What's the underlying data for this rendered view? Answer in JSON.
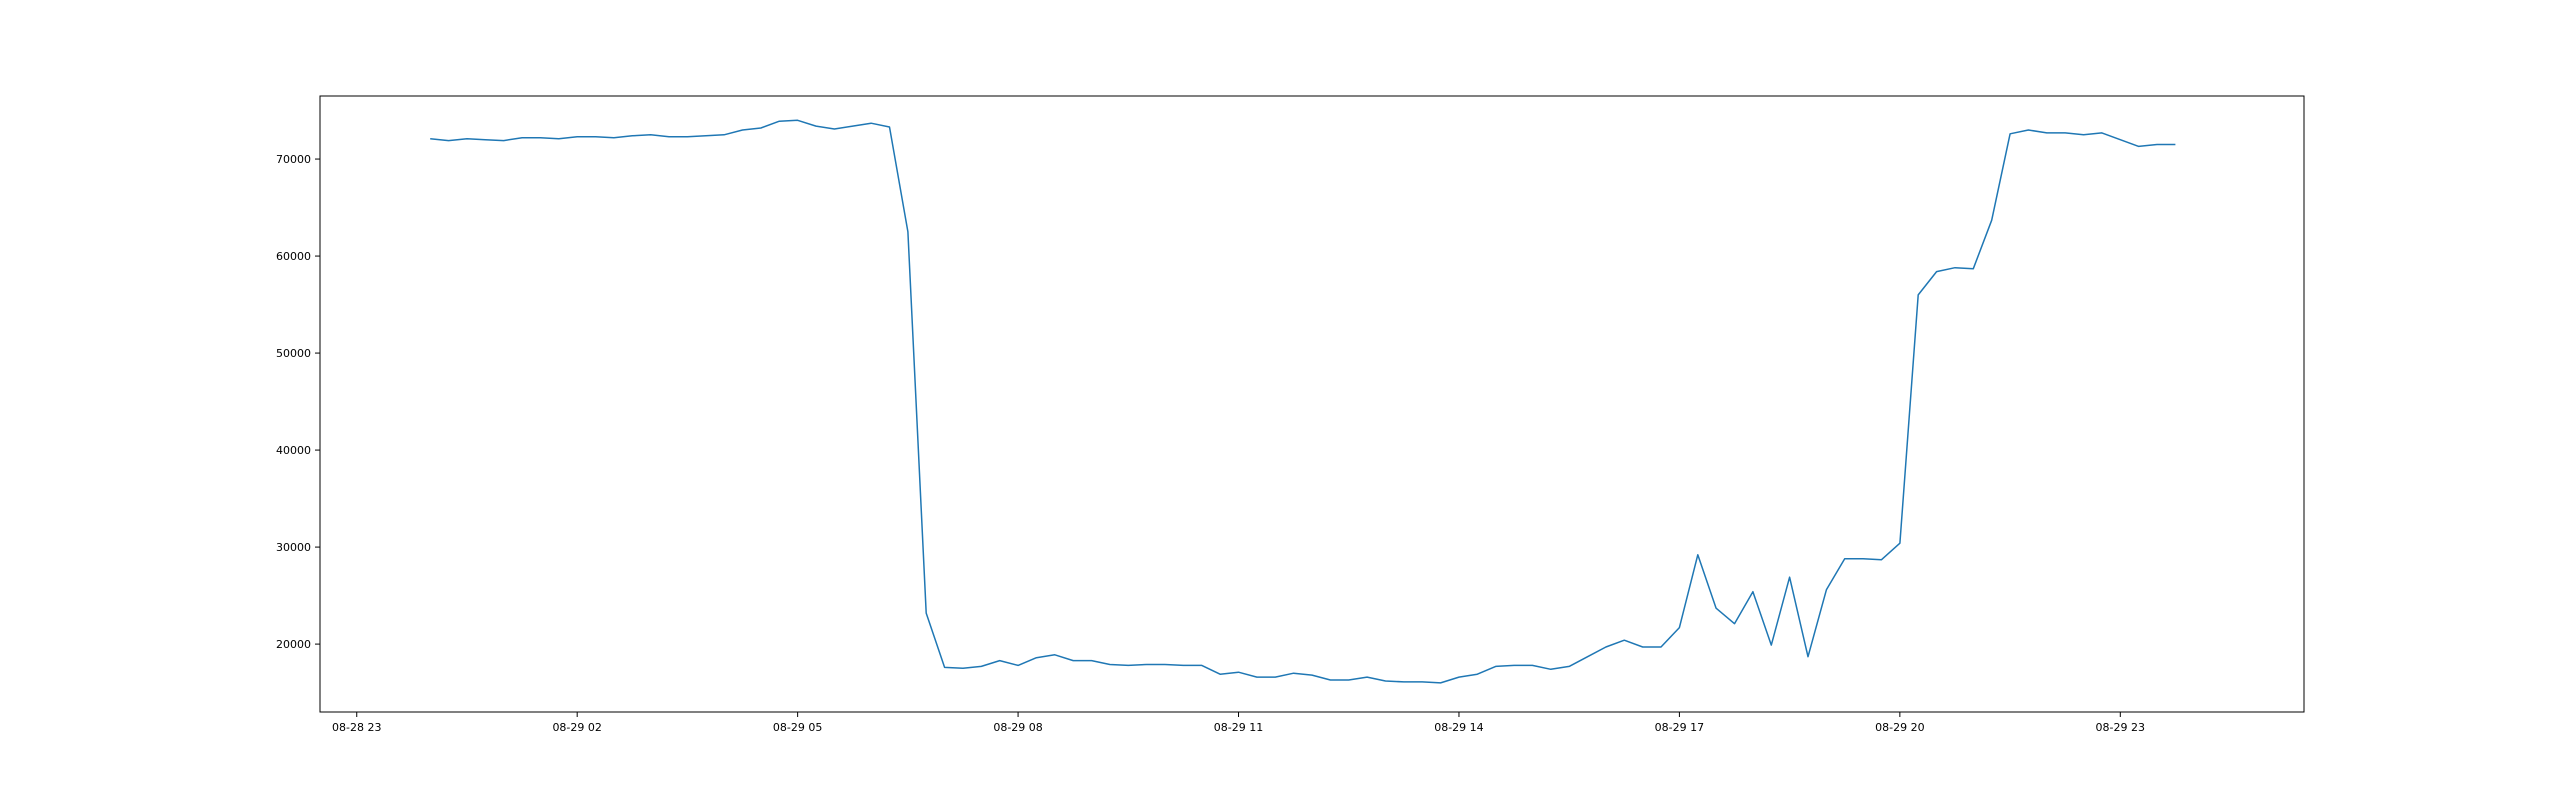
{
  "chart_data": {
    "type": "line",
    "title": "",
    "xlabel": "",
    "ylabel": "",
    "x_axis": {
      "kind": "datetime",
      "range": [
        "2018-08-28 22:30",
        "2018-08-30 01:30"
      ],
      "ticks": [
        {
          "t": "2018-08-28 23:00",
          "label": "08-28 23"
        },
        {
          "t": "2018-08-29 02:00",
          "label": "08-29 02"
        },
        {
          "t": "2018-08-29 05:00",
          "label": "08-29 05"
        },
        {
          "t": "2018-08-29 08:00",
          "label": "08-29 08"
        },
        {
          "t": "2018-08-29 11:00",
          "label": "08-29 11"
        },
        {
          "t": "2018-08-29 14:00",
          "label": "08-29 14"
        },
        {
          "t": "2018-08-29 17:00",
          "label": "08-29 17"
        },
        {
          "t": "2018-08-29 20:00",
          "label": "08-29 20"
        },
        {
          "t": "2018-08-29 23:00",
          "label": "08-29 23"
        }
      ]
    },
    "y_axis": {
      "range": [
        13000,
        76500
      ],
      "ticks": [
        20000,
        30000,
        40000,
        50000,
        60000,
        70000
      ]
    },
    "grid": false,
    "legend": "none",
    "series": [
      {
        "color": "#1f77b4",
        "x": [
          "2018-08-29 00:00",
          "2018-08-29 00:15",
          "2018-08-29 00:30",
          "2018-08-29 00:45",
          "2018-08-29 01:00",
          "2018-08-29 01:15",
          "2018-08-29 01:30",
          "2018-08-29 01:45",
          "2018-08-29 02:00",
          "2018-08-29 02:15",
          "2018-08-29 02:30",
          "2018-08-29 02:45",
          "2018-08-29 03:00",
          "2018-08-29 03:15",
          "2018-08-29 03:30",
          "2018-08-29 03:45",
          "2018-08-29 04:00",
          "2018-08-29 04:15",
          "2018-08-29 04:30",
          "2018-08-29 04:45",
          "2018-08-29 05:00",
          "2018-08-29 05:15",
          "2018-08-29 05:30",
          "2018-08-29 05:45",
          "2018-08-29 06:00",
          "2018-08-29 06:15",
          "2018-08-29 06:30",
          "2018-08-29 06:45",
          "2018-08-29 07:00",
          "2018-08-29 07:15",
          "2018-08-29 07:30",
          "2018-08-29 07:45",
          "2018-08-29 08:00",
          "2018-08-29 08:15",
          "2018-08-29 08:30",
          "2018-08-29 08:45",
          "2018-08-29 09:00",
          "2018-08-29 09:15",
          "2018-08-29 09:30",
          "2018-08-29 09:45",
          "2018-08-29 10:00",
          "2018-08-29 10:15",
          "2018-08-29 10:30",
          "2018-08-29 10:45",
          "2018-08-29 11:00",
          "2018-08-29 11:15",
          "2018-08-29 11:30",
          "2018-08-29 11:45",
          "2018-08-29 12:00",
          "2018-08-29 12:15",
          "2018-08-29 12:30",
          "2018-08-29 12:45",
          "2018-08-29 13:00",
          "2018-08-29 13:15",
          "2018-08-29 13:30",
          "2018-08-29 13:45",
          "2018-08-29 14:00",
          "2018-08-29 14:15",
          "2018-08-29 14:30",
          "2018-08-29 14:45",
          "2018-08-29 15:00",
          "2018-08-29 15:15",
          "2018-08-29 15:30",
          "2018-08-29 15:45",
          "2018-08-29 16:00",
          "2018-08-29 16:15",
          "2018-08-29 16:30",
          "2018-08-29 16:45",
          "2018-08-29 17:00",
          "2018-08-29 17:15",
          "2018-08-29 17:30",
          "2018-08-29 17:45",
          "2018-08-29 18:00",
          "2018-08-29 18:15",
          "2018-08-29 18:30",
          "2018-08-29 18:45",
          "2018-08-29 19:00",
          "2018-08-29 19:15",
          "2018-08-29 19:30",
          "2018-08-29 19:45",
          "2018-08-29 20:00",
          "2018-08-29 20:15",
          "2018-08-29 20:30",
          "2018-08-29 20:45",
          "2018-08-29 21:00",
          "2018-08-29 21:15",
          "2018-08-29 21:30",
          "2018-08-29 21:45",
          "2018-08-29 22:00",
          "2018-08-29 22:15",
          "2018-08-29 22:30",
          "2018-08-29 22:45",
          "2018-08-29 23:00",
          "2018-08-29 23:15",
          "2018-08-29 23:30",
          "2018-08-29 23:45"
        ],
        "y": [
          72100,
          71900,
          72100,
          72000,
          71900,
          72200,
          72200,
          72100,
          72300,
          72300,
          72200,
          72400,
          72500,
          72300,
          72300,
          72400,
          72500,
          73000,
          73200,
          73900,
          74000,
          73400,
          73100,
          73400,
          73700,
          73300,
          62500,
          23200,
          17600,
          17500,
          17700,
          18300,
          17800,
          18600,
          18900,
          18300,
          18300,
          17900,
          17800,
          17900,
          17900,
          17800,
          17800,
          16900,
          17100,
          16600,
          16600,
          17000,
          16800,
          16300,
          16300,
          16600,
          16200,
          16100,
          16100,
          16000,
          16600,
          16900,
          17700,
          17800,
          17800,
          17400,
          17700,
          18700,
          19700,
          20400,
          19700,
          19700,
          21700,
          29200,
          23700,
          22100,
          25400,
          19900,
          26900,
          18700,
          25600,
          28800,
          28800,
          28700,
          30400,
          56000,
          58400,
          58800,
          58700,
          63700,
          72600,
          73000,
          72700,
          72700,
          72500,
          72700,
          72000,
          71300,
          71500,
          71500
        ]
      }
    ]
  }
}
